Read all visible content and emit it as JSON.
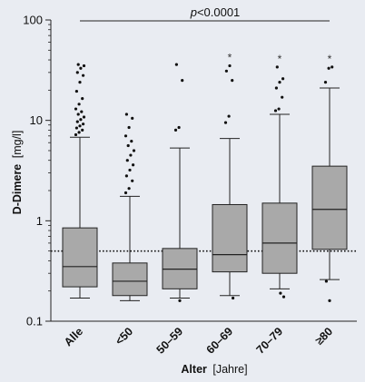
{
  "background": "#e9ecf2",
  "box_fill": "#a9a9a9",
  "line_color": "#222222",
  "chart_data": {
    "type": "boxplot",
    "ylabel": {
      "main": "D-Dimere",
      "unit": "[mg/l]"
    },
    "xlabel": {
      "main": "Alter",
      "unit": "[Jahre]"
    },
    "yscale": "log",
    "ylim": [
      0.1,
      100
    ],
    "yticks": [
      {
        "value": 0.1,
        "label": "0.1"
      },
      {
        "value": 1,
        "label": "1"
      },
      {
        "value": 10,
        "label": "10"
      },
      {
        "value": 100,
        "label": "100"
      }
    ],
    "reference_line": {
      "value": 0.5,
      "style": "dotted"
    },
    "significance": {
      "text_italic": "p",
      "text_rest": "<0.0001",
      "from": "Alle",
      "to": "≥80"
    },
    "categories": [
      "Alle",
      "<50",
      "50–59",
      "60–69",
      "70–79",
      "≥80"
    ],
    "boxes": [
      {
        "name": "Alle",
        "whisker_low": 0.17,
        "q1": 0.22,
        "median": 0.35,
        "q3": 0.85,
        "whisker_high": 6.8,
        "outliers_high": [
          7.2,
          7.6,
          8.0,
          8.4,
          8.8,
          9.2,
          9.7,
          10.2,
          10.8,
          11.5,
          12.2,
          13.0,
          14.5,
          16.5,
          19.5,
          24,
          28,
          30,
          33,
          35,
          36
        ],
        "outliers_low": [],
        "star": ""
      },
      {
        "name": "<50",
        "whisker_low": 0.16,
        "q1": 0.18,
        "median": 0.25,
        "q3": 0.38,
        "whisker_high": 1.75,
        "outliers_high": [
          1.9,
          2.1,
          2.5,
          2.8,
          3.2,
          3.6,
          4.0,
          4.5,
          5.0,
          5.6,
          6.2,
          7.0,
          8.5,
          10.5,
          11.5
        ],
        "outliers_low": [],
        "star": ""
      },
      {
        "name": "50–59",
        "whisker_low": 0.17,
        "q1": 0.21,
        "median": 0.33,
        "q3": 0.53,
        "whisker_high": 5.3,
        "outliers_high": [
          8.0,
          8.5,
          25,
          36
        ],
        "outliers_low": [
          0.16
        ],
        "star": ""
      },
      {
        "name": "60–69",
        "whisker_low": 0.18,
        "q1": 0.31,
        "median": 0.46,
        "q3": 1.45,
        "whisker_high": 6.6,
        "outliers_high": [
          9.5,
          11,
          25,
          31,
          35
        ],
        "outliers_low": [
          0.17
        ],
        "star": "*"
      },
      {
        "name": "70–79",
        "whisker_low": 0.21,
        "q1": 0.3,
        "median": 0.6,
        "q3": 1.5,
        "whisker_high": 11.5,
        "outliers_high": [
          12.5,
          13,
          17,
          21,
          24,
          26,
          34
        ],
        "outliers_low": [
          0.19,
          0.175
        ],
        "star": "*"
      },
      {
        "name": "≥80",
        "whisker_low": 0.26,
        "q1": 0.52,
        "median": 1.3,
        "q3": 3.5,
        "whisker_high": 21,
        "outliers_high": [
          24,
          33,
          34
        ],
        "outliers_low": [
          0.25,
          0.16
        ],
        "star": "*"
      }
    ]
  }
}
